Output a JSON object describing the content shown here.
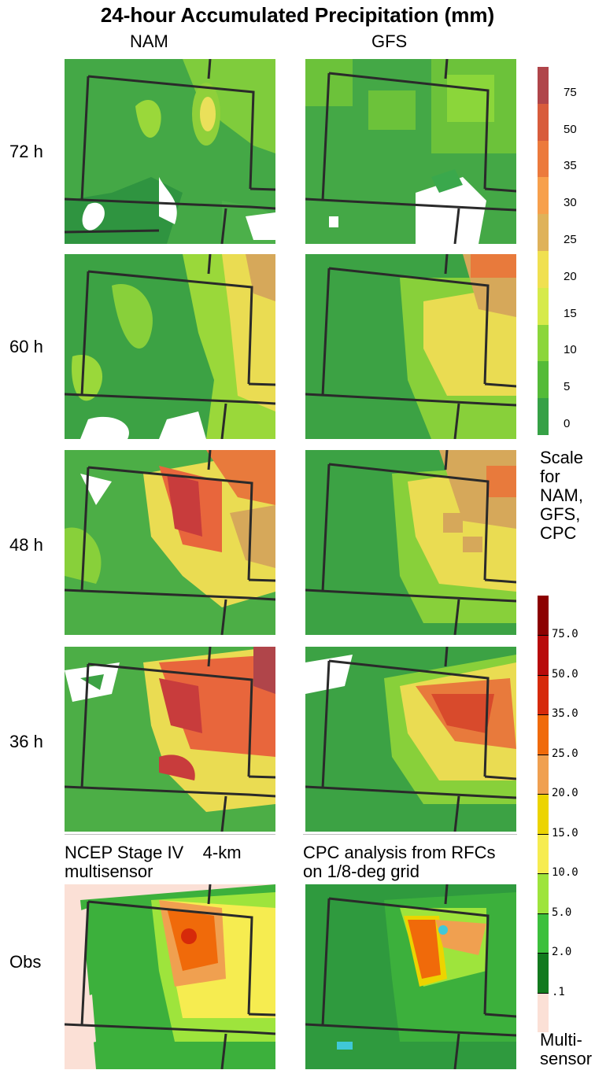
{
  "title": "24-hour Accumulated Precipitation (mm)",
  "columns": [
    "NAM",
    "GFS"
  ],
  "rows": [
    "72 h",
    "60 h",
    "48 h",
    "36 h"
  ],
  "obs_label": "Obs",
  "captions": {
    "left_line1": "NCEP Stage IV    4-km",
    "left_line2": "multisensor",
    "right_line1": "CPC analysis from RFCs",
    "right_line2": "on 1/8-deg grid"
  },
  "scale1": {
    "ticks": [
      "75",
      "50",
      "35",
      "30",
      "25",
      "20",
      "15",
      "10",
      "5",
      "0"
    ],
    "colors_top_to_bottom": [
      "#b0454a",
      "#d85c3c",
      "#ec7a3c",
      "#f7a04c",
      "#dfb25a",
      "#f0e050",
      "#d6ea4a",
      "#8bd63a",
      "#54bb38",
      "#36a146"
    ],
    "caption": [
      "Scale",
      "for",
      "NAM,",
      "GFS,",
      "CPC"
    ]
  },
  "scale2": {
    "ticks": [
      "75.0",
      "50.0",
      "35.0",
      "25.0",
      "20.0",
      "15.0",
      "10.0",
      "5.0",
      "2.0",
      ".1"
    ],
    "colors_top_to_bottom": [
      "#8c0000",
      "#b80a0a",
      "#d62a0a",
      "#f06a0a",
      "#f0a050",
      "#ecd400",
      "#f6ec50",
      "#9ee43c",
      "#3cc03c",
      "#127a1e",
      "#fbe0d6"
    ],
    "caption": [
      "Multi-",
      "sensor"
    ]
  }
}
